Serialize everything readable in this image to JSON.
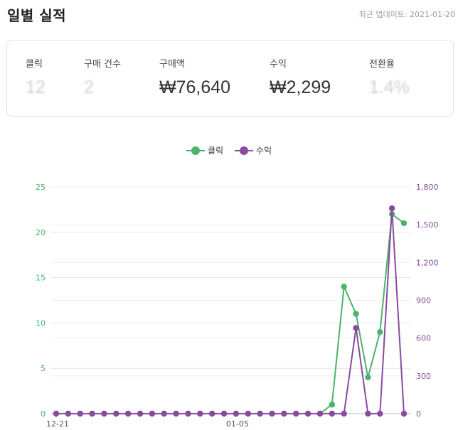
{
  "header": {
    "title": "일별 실적",
    "updated": "최근 업데이트: 2021-01-20"
  },
  "stats": [
    {
      "label": "클릭",
      "value": "12",
      "masked": true
    },
    {
      "label": "구매 건수",
      "value": "2",
      "masked": true
    },
    {
      "label": "구매액",
      "value": "₩76,640",
      "masked": false
    },
    {
      "label": "수익",
      "value": "₩2,299",
      "masked": false
    },
    {
      "label": "전환율",
      "value": "1.4%",
      "masked": true
    }
  ],
  "colors": {
    "clicks": "#4cb36c",
    "revenue": "#8a4a9e",
    "grid": "#e4e4e4",
    "axis_text_left": "#4cb36c",
    "axis_text_right": "#8a4a9e"
  },
  "chart_data": {
    "type": "line",
    "x_tick_labels": [
      "12-21",
      "01-05"
    ],
    "x_tick_indices": [
      0,
      15
    ],
    "legend_position": "top-center",
    "grid": true,
    "series": [
      {
        "name": "클릭",
        "axis": "left",
        "values": [
          0,
          0,
          0,
          0,
          0,
          0,
          0,
          0,
          0,
          0,
          0,
          0,
          0,
          0,
          0,
          0,
          0,
          0,
          0,
          0,
          0,
          0,
          0,
          1,
          14,
          11,
          4,
          9,
          22,
          21
        ]
      },
      {
        "name": "수익",
        "axis": "right",
        "values": [
          0,
          0,
          0,
          0,
          0,
          0,
          0,
          0,
          0,
          0,
          0,
          0,
          0,
          0,
          0,
          0,
          0,
          0,
          0,
          0,
          0,
          0,
          0,
          0,
          0,
          680,
          0,
          0,
          1630,
          0
        ]
      }
    ],
    "y_left": {
      "ylim": [
        0,
        25
      ],
      "ticks": [
        "0",
        "5",
        "10",
        "15",
        "20",
        "25"
      ]
    },
    "y_right": {
      "ylim": [
        0,
        1800
      ],
      "ticks": [
        "0",
        "300",
        "600",
        "900",
        "1,200",
        "1,500",
        "1,800"
      ]
    }
  }
}
